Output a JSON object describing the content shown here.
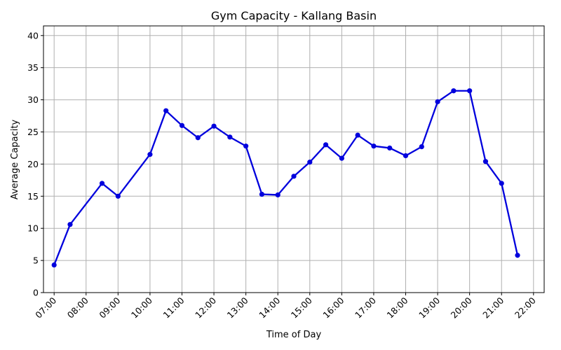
{
  "chart_data": {
    "type": "line",
    "title": "Gym Capacity - Kallang Basin",
    "xlabel": "Time of Day",
    "ylabel": "Average Capacity",
    "x_ticks": [
      "07:00",
      "08:00",
      "09:00",
      "10:00",
      "11:00",
      "12:00",
      "13:00",
      "14:00",
      "15:00",
      "16:00",
      "17:00",
      "18:00",
      "19:00",
      "20:00",
      "21:00",
      "22:00"
    ],
    "y_ticks": [
      0,
      5,
      10,
      15,
      20,
      25,
      30,
      35,
      40
    ],
    "xlim": [
      "06:40",
      "22:20"
    ],
    "ylim": [
      0,
      41.5
    ],
    "grid": true,
    "series": [
      {
        "color": "#0000dd",
        "marker": "circle",
        "x": [
          "07:00",
          "07:30",
          "08:30",
          "09:00",
          "10:00",
          "10:30",
          "11:00",
          "11:30",
          "12:00",
          "12:30",
          "13:00",
          "13:30",
          "14:00",
          "14:30",
          "15:00",
          "15:30",
          "16:00",
          "16:30",
          "17:00",
          "17:30",
          "18:00",
          "18:30",
          "19:00",
          "19:30",
          "20:00",
          "20:30",
          "21:00",
          "21:30"
        ],
        "y": [
          4.3,
          10.6,
          17.0,
          15.0,
          21.5,
          28.3,
          26.0,
          24.1,
          25.9,
          24.2,
          22.8,
          15.3,
          15.2,
          18.1,
          20.3,
          23.0,
          20.9,
          24.5,
          22.8,
          22.5,
          21.3,
          22.7,
          29.7,
          31.4,
          31.4,
          20.4,
          17.0,
          5.8
        ]
      }
    ]
  }
}
